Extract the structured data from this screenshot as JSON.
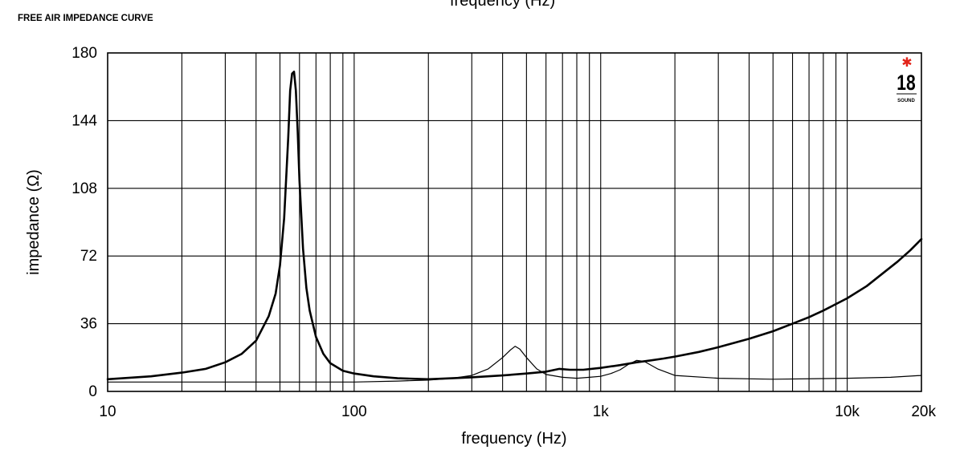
{
  "header": {
    "top_cut_text": "frequency (Hz)",
    "title": "FREE AIR IMPEDANCE CURVE"
  },
  "logo": {
    "text": "18",
    "subtext": "SOUND",
    "star_color": "#e2231a"
  },
  "chart_data": {
    "type": "line",
    "title": "FREE AIR IMPEDANCE CURVE",
    "xlabel": "frequency (Hz)",
    "ylabel": "impedance (Ω)",
    "xscale": "log",
    "xlim": [
      10,
      20000
    ],
    "ylim": [
      0,
      180
    ],
    "grid": true,
    "x_tick_labels": [
      {
        "value": 10,
        "label": "10"
      },
      {
        "value": 100,
        "label": "100"
      },
      {
        "value": 1000,
        "label": "1k"
      },
      {
        "value": 10000,
        "label": "10k"
      },
      {
        "value": 20000,
        "label": "20k"
      }
    ],
    "y_ticks": [
      0,
      36,
      72,
      108,
      144,
      180
    ],
    "series": [
      {
        "style": "thick",
        "x": [
          10,
          15,
          20,
          25,
          30,
          35,
          40,
          45,
          48,
          50,
          52,
          54,
          55,
          56,
          57,
          58,
          59,
          60,
          62,
          64,
          66,
          70,
          75,
          80,
          90,
          100,
          120,
          150,
          200,
          250,
          300,
          400,
          500,
          600,
          680,
          750,
          850,
          1000,
          1200,
          1400,
          1600,
          1800,
          2000,
          2500,
          3000,
          4000,
          5000,
          6000,
          7000,
          8000,
          10000,
          12000,
          14000,
          16000,
          18000,
          20000
        ],
        "y": [
          6.5,
          8,
          10,
          12,
          15.5,
          20,
          27,
          40,
          52,
          67,
          92,
          135,
          160,
          169,
          170,
          160,
          138,
          112,
          76,
          55,
          43,
          29,
          20,
          15,
          11,
          9.5,
          8,
          7,
          6.5,
          7,
          7.5,
          8.5,
          9.5,
          10.5,
          12,
          11.5,
          11.5,
          12.5,
          14,
          15.5,
          16.5,
          17.5,
          18.5,
          21,
          23.5,
          28,
          32,
          36,
          39.5,
          43,
          49.5,
          56,
          63,
          69,
          75,
          81
        ]
      },
      {
        "style": "thin",
        "x": [
          10,
          50,
          100,
          150,
          200,
          250,
          300,
          350,
          400,
          430,
          450,
          470,
          500,
          550,
          600,
          700,
          800,
          900,
          1000,
          1100,
          1200,
          1300,
          1400,
          1500,
          1700,
          2000,
          3000,
          5000,
          10000,
          15000,
          20000
        ],
        "y": [
          5,
          5,
          5,
          5.5,
          6,
          7,
          8.5,
          12,
          18,
          22,
          24,
          22.5,
          18,
          12,
          9,
          7.5,
          7,
          7.5,
          8,
          9.5,
          11.5,
          14.5,
          16.5,
          16,
          12,
          8.5,
          7,
          6.5,
          7,
          7.5,
          8.5
        ]
      }
    ]
  }
}
